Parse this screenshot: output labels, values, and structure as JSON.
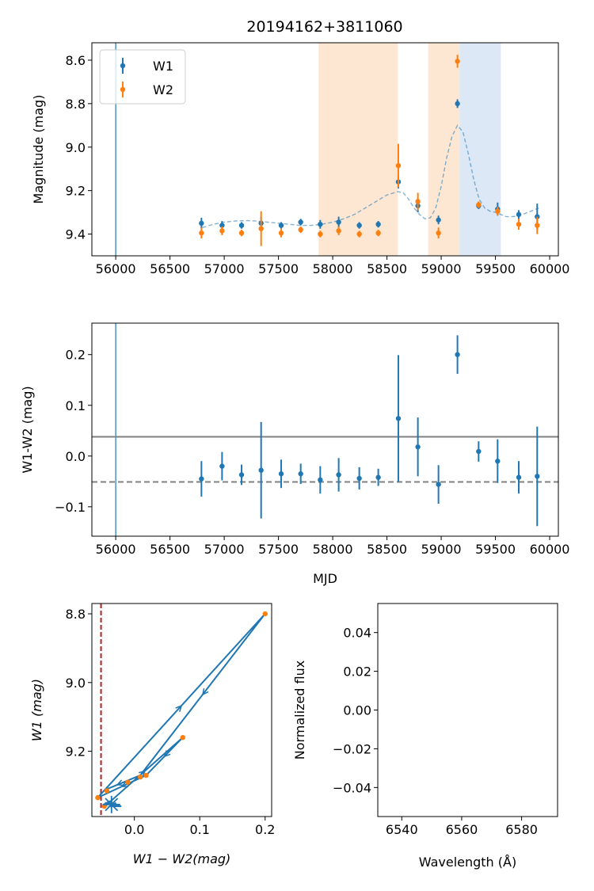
{
  "title": "20194162+3811060",
  "colors": {
    "w1": "#1f77b4",
    "w2": "#ff7f0e",
    "orange_band": "#fde7d3",
    "blue_band": "#dce8f5",
    "gray_line": "#808080",
    "red_dashed": "#b22222"
  },
  "chart_data": [
    {
      "type": "scatter",
      "id": "lightcurve",
      "ylabel": "Magnitude (mag)",
      "xlim": [
        55780,
        60080
      ],
      "ylim": [
        9.5,
        8.52
      ],
      "x_ticks": [
        56000,
        56500,
        57000,
        57500,
        58000,
        58500,
        59000,
        59500,
        60000
      ],
      "y_ticks": [
        8.6,
        8.8,
        9.0,
        9.2,
        9.4
      ],
      "y_tick_labels": [
        "8.6",
        "8.8",
        "9.0",
        "9.2",
        "9.4"
      ],
      "legend": {
        "placement": "top-left",
        "entries": [
          "W1",
          "W2"
        ]
      },
      "vertical_line": 56000,
      "orange_bands": [
        [
          57870,
          58600
        ],
        [
          58880,
          59170
        ]
      ],
      "blue_bands": [
        [
          59170,
          59550
        ]
      ],
      "series": [
        {
          "name": "W1",
          "x": [
            56790,
            56980,
            57160,
            57340,
            57525,
            57705,
            57885,
            58055,
            58245,
            58420,
            58605,
            58785,
            58975,
            59150,
            59345,
            59520,
            59715,
            59885
          ],
          "y": [
            9.35,
            9.36,
            9.36,
            9.35,
            9.36,
            9.345,
            9.355,
            9.345,
            9.36,
            9.355,
            9.16,
            9.27,
            9.335,
            8.8,
            9.27,
            9.285,
            9.31,
            9.32
          ],
          "err": [
            0.025,
            0.02,
            0.015,
            0.03,
            0.015,
            0.015,
            0.02,
            0.025,
            0.015,
            0.015,
            0.03,
            0.03,
            0.02,
            0.02,
            0.015,
            0.03,
            0.02,
            0.06
          ]
        },
        {
          "name": "W2",
          "x": [
            56790,
            56980,
            57160,
            57340,
            57525,
            57705,
            57885,
            58055,
            58245,
            58420,
            58605,
            58785,
            58975,
            59150,
            59345,
            59520,
            59715,
            59885
          ],
          "y": [
            9.395,
            9.385,
            9.395,
            9.375,
            9.395,
            9.38,
            9.4,
            9.385,
            9.4,
            9.395,
            9.085,
            9.25,
            9.395,
            8.605,
            9.265,
            9.295,
            9.355,
            9.36
          ],
          "err": [
            0.025,
            0.02,
            0.015,
            0.08,
            0.02,
            0.015,
            0.015,
            0.02,
            0.015,
            0.015,
            0.1,
            0.04,
            0.025,
            0.03,
            0.015,
            0.02,
            0.025,
            0.04
          ]
        }
      ],
      "fit_curve": {
        "x": [
          56800,
          56900,
          57000,
          57100,
          57200,
          57300,
          57400,
          57500,
          57600,
          57700,
          57800,
          57900,
          58000,
          58100,
          58200,
          58300,
          58400,
          58500,
          58600,
          58650,
          58700,
          58750,
          58800,
          58850,
          58900,
          58950,
          59000,
          59050,
          59100,
          59150,
          59200,
          59250,
          59300,
          59350,
          59400,
          59450,
          59500,
          59550,
          59600,
          59650,
          59700,
          59750,
          59800,
          59850,
          59900
        ],
        "y": [
          9.37,
          9.355,
          9.345,
          9.34,
          9.338,
          9.34,
          9.345,
          9.35,
          9.355,
          9.36,
          9.36,
          9.355,
          9.345,
          9.33,
          9.31,
          9.28,
          9.25,
          9.22,
          9.205,
          9.21,
          9.24,
          9.28,
          9.31,
          9.33,
          9.325,
          9.28,
          9.18,
          9.05,
          8.95,
          8.9,
          8.93,
          9.03,
          9.15,
          9.24,
          9.28,
          9.295,
          9.3,
          9.31,
          9.32,
          9.32,
          9.318,
          9.31,
          9.3,
          9.29,
          9.28
        ]
      }
    },
    {
      "type": "scatter",
      "id": "color_curve",
      "xlabel": "MJD",
      "ylabel": "W1-W2 (mag)",
      "xlim": [
        55780,
        60080
      ],
      "ylim": [
        -0.158,
        0.262
      ],
      "x_ticks": [
        56000,
        56500,
        57000,
        57500,
        58000,
        58500,
        59000,
        59500,
        60000
      ],
      "y_ticks": [
        0.2,
        0.1,
        0.0,
        -0.1
      ],
      "y_tick_labels": [
        "0.2",
        "0.1",
        "0.0",
        "−0.1"
      ],
      "vertical_line": 56000,
      "solid_hline": 0.038,
      "dashed_hline": -0.051,
      "series": [
        {
          "name": "W1-W2",
          "x": [
            56790,
            56980,
            57160,
            57340,
            57525,
            57705,
            57885,
            58055,
            58245,
            58420,
            58605,
            58785,
            58975,
            59150,
            59345,
            59520,
            59715,
            59885
          ],
          "y": [
            -0.045,
            -0.02,
            -0.037,
            -0.028,
            -0.035,
            -0.035,
            -0.047,
            -0.037,
            -0.044,
            -0.042,
            0.074,
            0.018,
            -0.056,
            0.2,
            0.009,
            -0.01,
            -0.042,
            -0.04
          ],
          "err": [
            0.035,
            0.028,
            0.02,
            0.095,
            0.028,
            0.02,
            0.027,
            0.033,
            0.022,
            0.017,
            0.125,
            0.058,
            0.038,
            0.038,
            0.02,
            0.043,
            0.032,
            0.098
          ]
        }
      ]
    },
    {
      "type": "line",
      "id": "color_magnitude",
      "xlabel": "W1 − W2(mag)",
      "ylabel": "W1 (mag)",
      "xlim": [
        -0.065,
        0.21
      ],
      "ylim": [
        9.39,
        8.77
      ],
      "x_ticks": [
        0.0,
        0.1,
        0.2
      ],
      "x_tick_labels": [
        "0.0",
        "0.1",
        "0.2"
      ],
      "y_ticks": [
        8.8,
        9.0,
        9.2
      ],
      "y_tick_labels": [
        "8.8",
        "9.0",
        "9.2"
      ],
      "dashed_vline": -0.051,
      "path": [
        [
          -0.045,
          9.35
        ],
        [
          -0.02,
          9.36
        ],
        [
          -0.037,
          9.36
        ],
        [
          -0.028,
          9.35
        ],
        [
          -0.035,
          9.36
        ],
        [
          -0.035,
          9.345
        ],
        [
          -0.047,
          9.355
        ],
        [
          -0.037,
          9.345
        ],
        [
          -0.044,
          9.36
        ],
        [
          -0.042,
          9.355
        ],
        [
          0.074,
          9.16
        ],
        [
          0.018,
          9.27
        ],
        [
          -0.056,
          9.335
        ],
        [
          0.2,
          8.8
        ],
        [
          0.009,
          9.27
        ],
        [
          -0.01,
          9.285
        ],
        [
          -0.042,
          9.31
        ],
        [
          -0.04,
          9.32
        ]
      ],
      "star_marker": [
        -0.035,
        9.355
      ],
      "orange_points": [
        [
          -0.056,
          9.335
        ],
        [
          0.2,
          8.8
        ],
        [
          0.074,
          9.16
        ],
        [
          0.018,
          9.27
        ],
        [
          0.009,
          9.275
        ],
        [
          -0.01,
          9.29
        ],
        [
          -0.042,
          9.315
        ],
        [
          -0.046,
          9.36
        ]
      ]
    },
    {
      "type": "line",
      "id": "spectrum",
      "xlabel": "Wavelength (Å)",
      "ylabel": "Normalized flux",
      "xlim": [
        6532,
        6592
      ],
      "ylim": [
        -0.055,
        0.055
      ],
      "x_ticks": [
        6540,
        6560,
        6580
      ],
      "y_ticks": [
        0.04,
        0.02,
        0.0,
        -0.02,
        -0.04
      ],
      "y_tick_labels": [
        "0.04",
        "0.02",
        "0.00",
        "−0.02",
        "−0.04"
      ]
    }
  ]
}
